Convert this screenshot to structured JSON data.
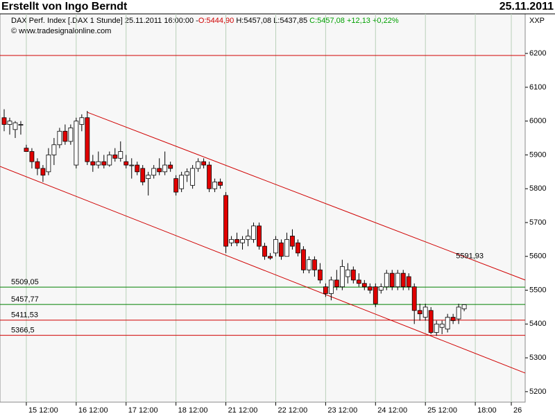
{
  "chart_data": {
    "type": "candlestick",
    "title": "Erstellt von Ingo Berndt",
    "date": "25.11.2011",
    "info": {
      "instrument": "DAX Perf. Index [.DAX  1 Stunde] 25.11.2011 16:00:00 -",
      "open": "O:5444,90",
      "high_low": "H:5457,08 L:5437,85",
      "close": "C:5457,08 +12,13 +0,22%"
    },
    "copyright": "© www.tradesignalonline.com",
    "axis_unit": "XXP",
    "up_color": "#ffffff",
    "down_color": "#e00000",
    "grid": "vertical",
    "x": [
      -4,
      -3,
      -2,
      -1,
      0,
      1,
      2,
      3,
      4,
      5,
      6,
      7,
      8,
      9,
      10,
      11,
      12,
      13,
      14,
      15,
      16,
      17,
      18,
      19,
      20,
      21,
      22,
      23,
      24,
      25,
      26,
      27,
      28,
      29,
      30,
      31,
      32,
      33,
      34,
      35,
      36,
      37,
      38,
      39,
      40,
      41,
      42,
      43,
      44,
      45,
      46,
      47,
      48,
      49,
      50,
      51,
      52,
      53,
      54,
      55,
      56,
      57,
      58,
      59,
      60,
      61,
      62,
      63,
      64,
      65,
      66,
      67,
      68,
      69,
      70,
      71,
      72,
      73,
      74,
      75,
      76,
      77,
      78,
      79
    ],
    "open": [
      6010,
      5990,
      5975,
      5990,
      5920,
      5910,
      5880,
      5860,
      5850,
      5900,
      5930,
      5970,
      5940,
      5870,
      5990,
      6010,
      5880,
      5870,
      5880,
      5870,
      5900,
      5890,
      5880,
      5870,
      5870,
      5860,
      5830,
      5840,
      5860,
      5850,
      5870,
      5830,
      5800,
      5840,
      5810,
      5860,
      5880,
      5870,
      5800,
      5820,
      5780,
      5640,
      5650,
      5640,
      5650,
      5650,
      5690,
      5630,
      5600,
      5610,
      5640,
      5600,
      5660,
      5640,
      5620,
      5560,
      5590,
      5560,
      5510,
      5490,
      5530,
      5510,
      5540,
      5560,
      5530,
      5520,
      5510,
      5510,
      5500,
      5510,
      5550,
      5510,
      5550,
      5540,
      5510,
      5440,
      5420,
      5440,
      5375,
      5390,
      5385,
      5420,
      5415,
      5444.9
    ],
    "high": [
      6035,
      6010,
      6000,
      6000,
      5930,
      5920,
      5890,
      5870,
      5920,
      5950,
      5980,
      5990,
      5990,
      6010,
      6020,
      6030,
      5900,
      5910,
      5900,
      5910,
      5920,
      5940,
      5900,
      5890,
      5880,
      5870,
      5850,
      5870,
      5890,
      5910,
      5880,
      5840,
      5850,
      5860,
      5870,
      5890,
      5890,
      5880,
      5830,
      5830,
      5790,
      5660,
      5670,
      5660,
      5680,
      5700,
      5700,
      5640,
      5610,
      5660,
      5650,
      5670,
      5680,
      5650,
      5630,
      5600,
      5600,
      5580,
      5520,
      5540,
      5560,
      5590,
      5580,
      5570,
      5550,
      5530,
      5520,
      5520,
      5520,
      5560,
      5560,
      5560,
      5560,
      5550,
      5520,
      5460,
      5460,
      5450,
      5410,
      5410,
      5430,
      5430,
      5460,
      5457.08
    ],
    "low": [
      5970,
      5960,
      5950,
      5960,
      5910,
      5860,
      5840,
      5820,
      5840,
      5870,
      5920,
      5930,
      5930,
      5860,
      5970,
      5870,
      5850,
      5860,
      5860,
      5865,
      5880,
      5880,
      5860,
      5830,
      5840,
      5810,
      5780,
      5830,
      5840,
      5840,
      5850,
      5780,
      5790,
      5820,
      5800,
      5850,
      5860,
      5790,
      5790,
      5800,
      5610,
      5630,
      5630,
      5620,
      5630,
      5640,
      5620,
      5590,
      5590,
      5600,
      5590,
      5600,
      5620,
      5600,
      5550,
      5550,
      5540,
      5520,
      5480,
      5470,
      5500,
      5500,
      5520,
      5520,
      5510,
      5500,
      5490,
      5450,
      5490,
      5500,
      5500,
      5500,
      5500,
      5500,
      5400,
      5410,
      5410,
      5370,
      5365,
      5370,
      5375,
      5400,
      5400,
      5437.85
    ],
    "close": [
      5990,
      6000,
      5995,
      5990,
      5910,
      5880,
      5860,
      5840,
      5900,
      5930,
      5970,
      5940,
      5980,
      6000,
      6010,
      5880,
      5870,
      5880,
      5870,
      5900,
      5890,
      5910,
      5870,
      5870,
      5850,
      5820,
      5840,
      5860,
      5850,
      5870,
      5860,
      5790,
      5840,
      5850,
      5860,
      5880,
      5870,
      5800,
      5820,
      5810,
      5630,
      5650,
      5640,
      5650,
      5660,
      5690,
      5630,
      5600,
      5595,
      5650,
      5600,
      5650,
      5630,
      5610,
      5560,
      5590,
      5560,
      5530,
      5490,
      5530,
      5510,
      5570,
      5560,
      5530,
      5520,
      5510,
      5500,
      5460,
      5510,
      5550,
      5510,
      5550,
      5510,
      5510,
      5440,
      5430,
      5450,
      5375,
      5400,
      5400,
      5420,
      5410,
      5450,
      5457.08
    ],
    "xlim": [
      -4.75,
      90
    ],
    "xticks": [
      {
        "value": 0,
        "label": "15 12:00"
      },
      {
        "value": 9,
        "label": "16 12:00"
      },
      {
        "value": 18,
        "label": "17 12:00"
      },
      {
        "value": 27,
        "label": "18 12:00"
      },
      {
        "value": 36,
        "label": "21 12:00"
      },
      {
        "value": 45,
        "label": "22 12:00"
      },
      {
        "value": 54,
        "label": "23 12:00"
      },
      {
        "value": 63,
        "label": "24 12:00"
      },
      {
        "value": 72,
        "label": "25 12:00"
      },
      {
        "value": 81,
        "label": "18:00"
      },
      {
        "value": 87.5,
        "label": "26"
      }
    ],
    "ylim": [
      5169,
      6317
    ],
    "yticks": [
      5200,
      5300,
      5400,
      5500,
      5600,
      5700,
      5800,
      5900,
      6000,
      6100,
      6200
    ],
    "levels": [
      {
        "value": 6194,
        "color": "#d00000"
      },
      {
        "value": 5509.05,
        "label": "5509,05",
        "color": "#008000"
      },
      {
        "value": 5457.77,
        "label": "5457,77",
        "color": "#008000"
      },
      {
        "value": 5411.53,
        "label": "5411,53",
        "color": "#d00000"
      },
      {
        "value": 5366.5,
        "label": "5366,5",
        "color": "#d00000"
      }
    ],
    "channel": [
      {
        "x": [
          11,
          90
        ],
        "y": [
          6026,
          5530
        ],
        "color": "#d00000"
      },
      {
        "x": [
          -4.75,
          90
        ],
        "y": [
          5866,
          5255
        ],
        "color": "#d00000"
      }
    ],
    "annotations": [
      {
        "x": 80,
        "y": 5591.93,
        "label": "5591,93",
        "color": "#d00000"
      }
    ]
  }
}
